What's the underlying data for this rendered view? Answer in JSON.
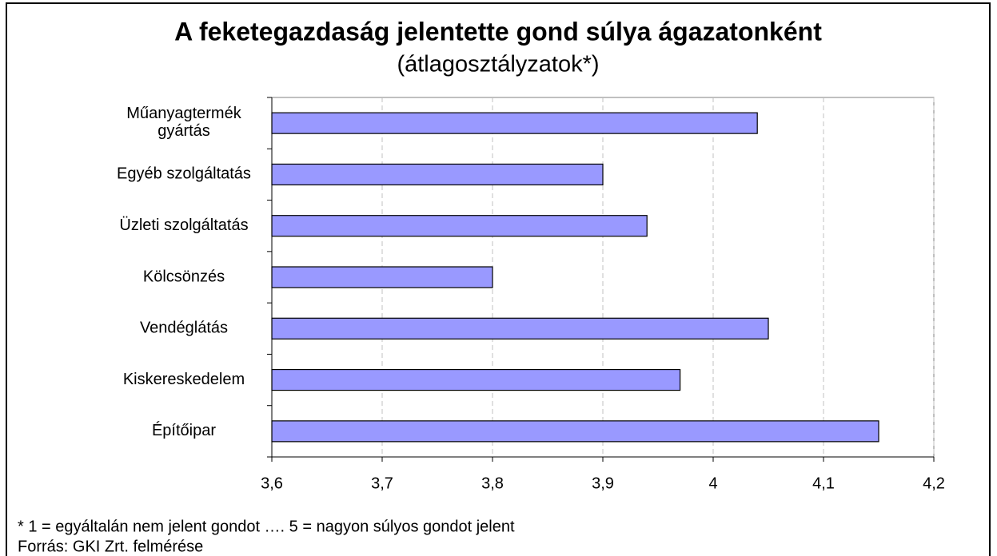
{
  "chart_data": {
    "type": "barh",
    "title": "A feketegazdaság jelentette gond súlya ágazatonként",
    "subtitle": "(átlagosztályzatok*)",
    "categories": [
      "Műanyagtermék gyártás",
      "Egyéb szolgáltatás",
      "Üzleti szolgáltatás",
      "Kölcsönzés",
      "Vendéglátás",
      "Kiskereskedelem",
      "Építőipar"
    ],
    "values": [
      4.04,
      3.9,
      3.94,
      3.8,
      4.05,
      3.97,
      4.15
    ],
    "color": "#9999ff",
    "xlim": [
      3.6,
      4.2
    ],
    "xticks": [
      {
        "value": 3.6,
        "label": "3,6"
      },
      {
        "value": 3.7,
        "label": "3,7"
      },
      {
        "value": 3.8,
        "label": "3,8"
      },
      {
        "value": 3.9,
        "label": "3,9"
      },
      4,
      {
        "value": 4.1,
        "label": "4,1"
      },
      {
        "value": 4.2,
        "label": "4,2"
      }
    ],
    "grid": true,
    "notes": [
      "* 1 = egyáltalán nem jelent gondot …. 5 = nagyon súlyos gondot jelent",
      "Forrás: GKI Zrt. felmérése"
    ]
  }
}
